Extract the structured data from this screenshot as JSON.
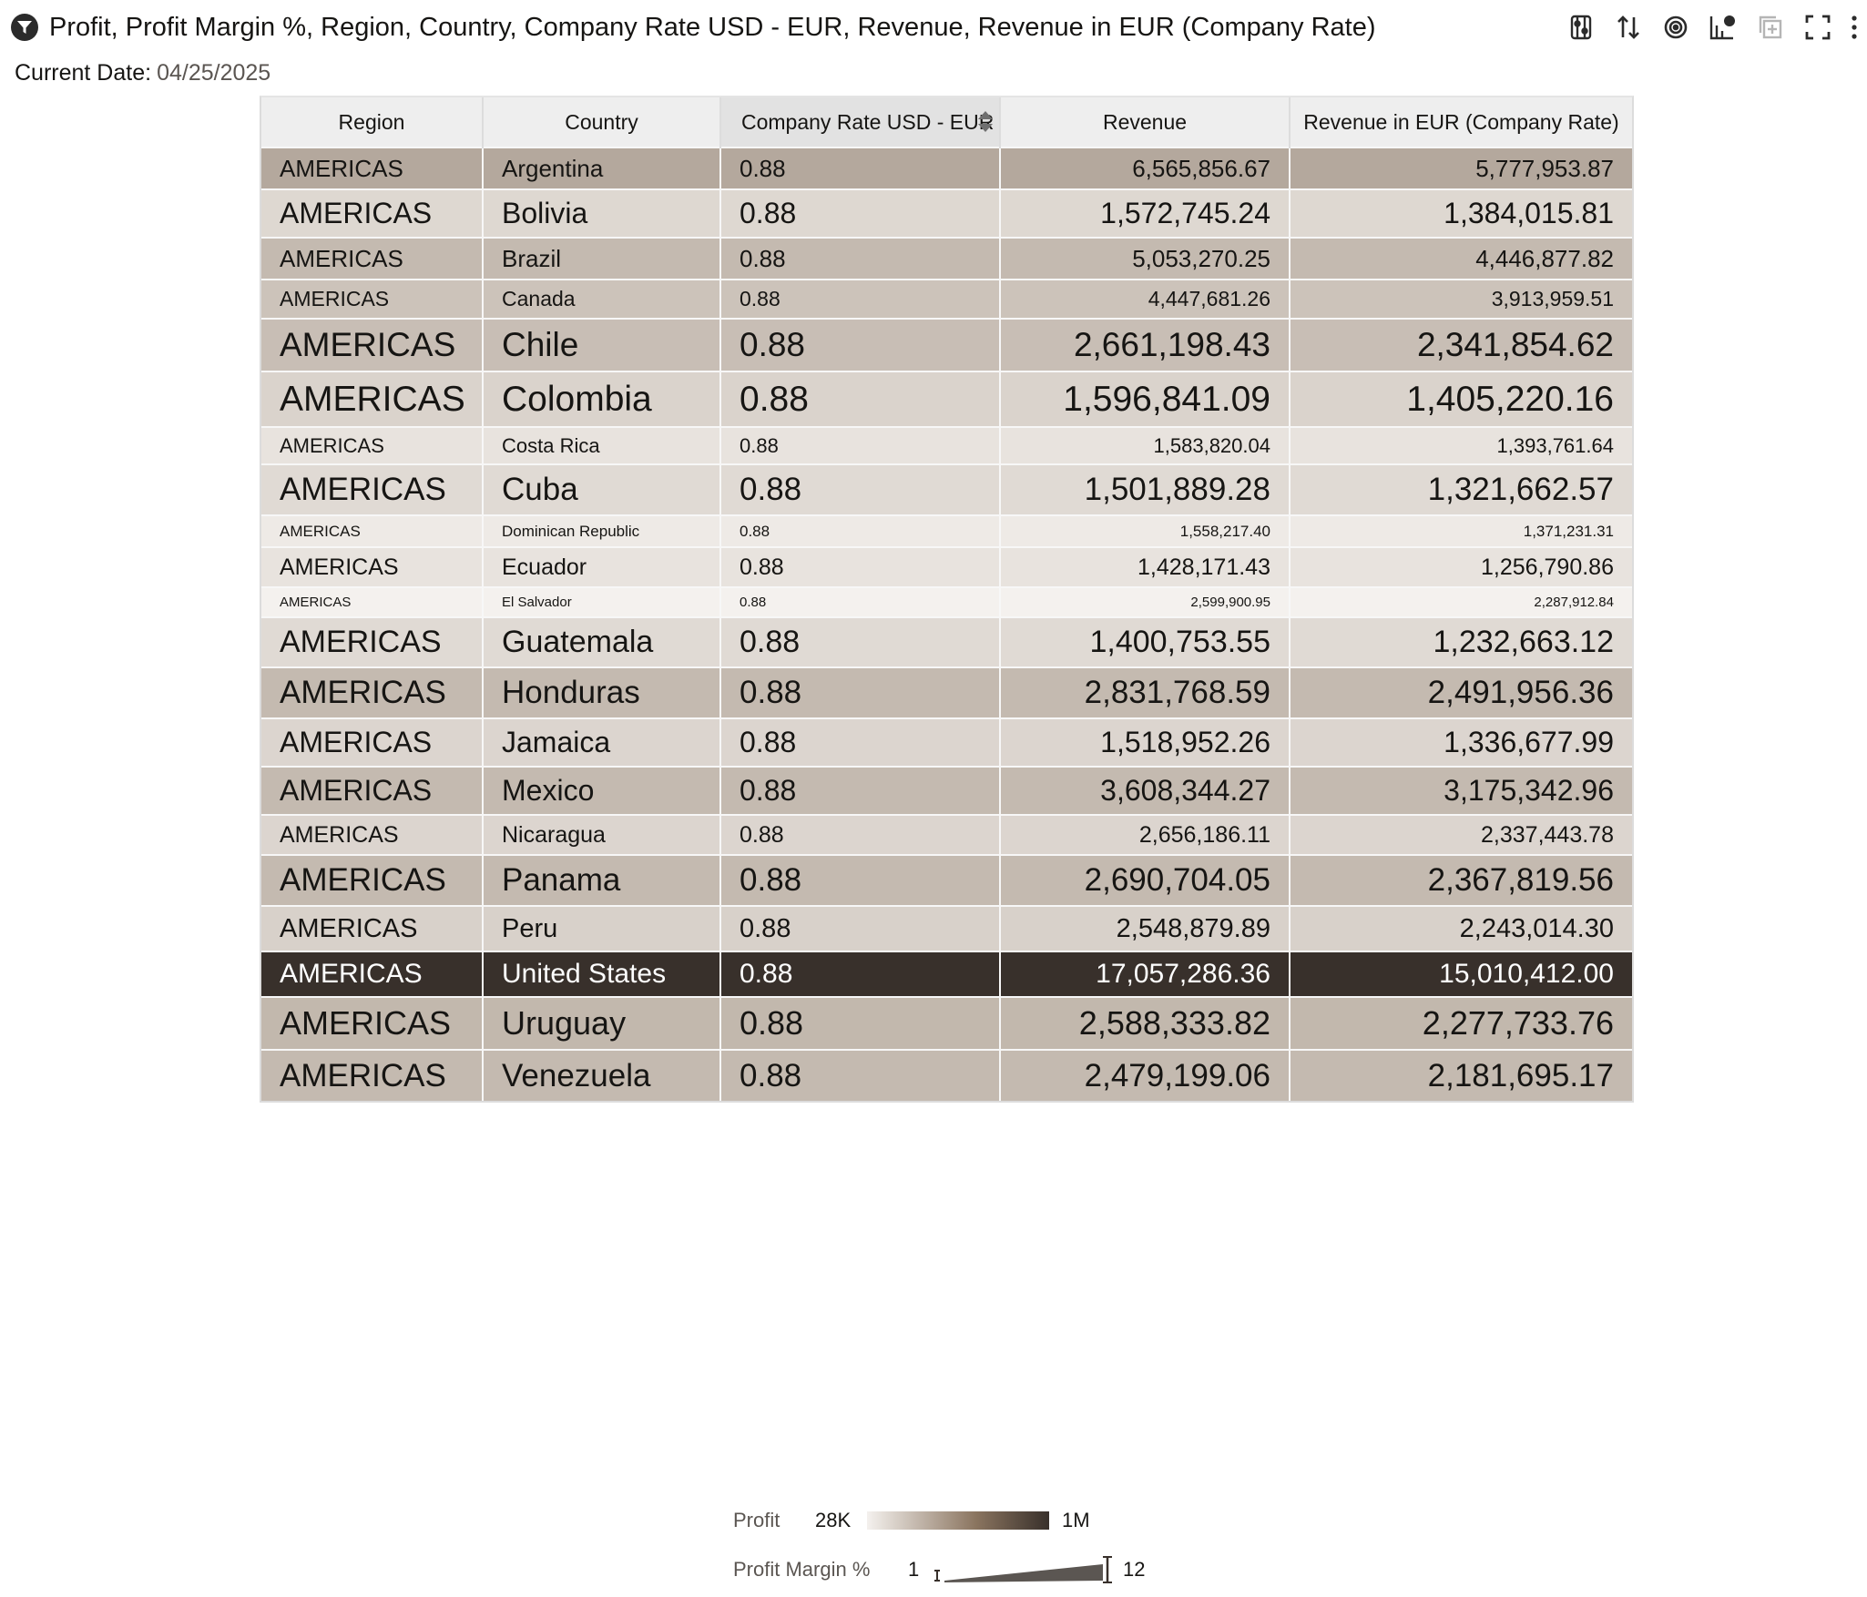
{
  "header": {
    "title": "Profit, Profit Margin %, Region, Country, Company Rate USD - EUR, Revenue, Revenue in EUR (Company Rate)"
  },
  "toolbar": {
    "icons": [
      "filter-settings-icon",
      "sort-icon",
      "target-icon",
      "chart-properties-icon",
      "add-visualization-icon",
      "fullscreen-icon",
      "more-options-icon"
    ]
  },
  "current_date": {
    "label": "Current Date:",
    "value": "04/25/2025"
  },
  "table": {
    "columns": [
      "Region",
      "Country",
      "Company Rate USD - EUR",
      "Revenue",
      "Revenue in EUR (Company Rate)"
    ],
    "sorted_column": "Company Rate USD - EUR",
    "rows": [
      {
        "region": "AMERICAS",
        "country": "Argentina",
        "rate": "0.88",
        "revenue": "6,565,856.67",
        "revenue_eur": "5,777,953.87",
        "profit_level": 0.32,
        "margin_level": 0.45
      },
      {
        "region": "AMERICAS",
        "country": "Bolivia",
        "rate": "0.88",
        "revenue": "1,572,745.24",
        "revenue_eur": "1,384,015.81",
        "profit_level": 0.11,
        "margin_level": 0.7
      },
      {
        "region": "AMERICAS",
        "country": "Brazil",
        "rate": "0.88",
        "revenue": "5,053,270.25",
        "revenue_eur": "4,446,877.82",
        "profit_level": 0.24,
        "margin_level": 0.45
      },
      {
        "region": "AMERICAS",
        "country": "Canada",
        "rate": "0.88",
        "revenue": "4,447,681.26",
        "revenue_eur": "3,913,959.51",
        "profit_level": 0.2,
        "margin_level": 0.35
      },
      {
        "region": "AMERICAS",
        "country": "Chile",
        "rate": "0.88",
        "revenue": "2,661,198.43",
        "revenue_eur": "2,341,854.62",
        "profit_level": 0.22,
        "margin_level": 0.9
      },
      {
        "region": "AMERICAS",
        "country": "Colombia",
        "rate": "0.88",
        "revenue": "1,596,841.09",
        "revenue_eur": "1,405,220.16",
        "profit_level": 0.13,
        "margin_level": 1.0
      },
      {
        "region": "AMERICAS",
        "country": "Costa Rica",
        "rate": "0.88",
        "revenue": "1,583,820.04",
        "revenue_eur": "1,393,761.64",
        "profit_level": 0.06,
        "margin_level": 0.3
      },
      {
        "region": "AMERICAS",
        "country": "Cuba",
        "rate": "0.88",
        "revenue": "1,501,889.28",
        "revenue_eur": "1,321,662.57",
        "profit_level": 0.1,
        "margin_level": 0.82
      },
      {
        "region": "AMERICAS",
        "country": "Dominican Republic",
        "rate": "0.88",
        "revenue": "1,558,217.40",
        "revenue_eur": "1,371,231.31",
        "profit_level": 0.03,
        "margin_level": 0.08
      },
      {
        "region": "AMERICAS",
        "country": "Ecuador",
        "rate": "0.88",
        "revenue": "1,428,171.43",
        "revenue_eur": "1,256,790.86",
        "profit_level": 0.06,
        "margin_level": 0.4
      },
      {
        "region": "AMERICAS",
        "country": "El Salvador",
        "rate": "0.88",
        "revenue": "2,599,900.95",
        "revenue_eur": "2,287,912.84",
        "profit_level": 0.0,
        "margin_level": 0.0
      },
      {
        "region": "AMERICAS",
        "country": "Guatemala",
        "rate": "0.88",
        "revenue": "1,400,753.55",
        "revenue_eur": "1,232,663.12",
        "profit_level": 0.1,
        "margin_level": 0.78
      },
      {
        "region": "AMERICAS",
        "country": "Honduras",
        "rate": "0.88",
        "revenue": "2,831,768.59",
        "revenue_eur": "2,491,956.36",
        "profit_level": 0.24,
        "margin_level": 0.82
      },
      {
        "region": "AMERICAS",
        "country": "Jamaica",
        "rate": "0.88",
        "revenue": "1,518,952.26",
        "revenue_eur": "1,336,677.99",
        "profit_level": 0.12,
        "margin_level": 0.72
      },
      {
        "region": "AMERICAS",
        "country": "Mexico",
        "rate": "0.88",
        "revenue": "3,608,344.27",
        "revenue_eur": "3,175,342.96",
        "profit_level": 0.24,
        "margin_level": 0.7
      },
      {
        "region": "AMERICAS",
        "country": "Nicaragua",
        "rate": "0.88",
        "revenue": "2,656,186.11",
        "revenue_eur": "2,337,443.78",
        "profit_level": 0.12,
        "margin_level": 0.4
      },
      {
        "region": "AMERICAS",
        "country": "Panama",
        "rate": "0.88",
        "revenue": "2,690,704.05",
        "revenue_eur": "2,367,819.56",
        "profit_level": 0.24,
        "margin_level": 0.82
      },
      {
        "region": "AMERICAS",
        "country": "Peru",
        "rate": "0.88",
        "revenue": "2,548,879.89",
        "revenue_eur": "2,243,014.30",
        "profit_level": 0.14,
        "margin_level": 0.6
      },
      {
        "region": "AMERICAS",
        "country": "United States",
        "rate": "0.88",
        "revenue": "17,057,286.36",
        "revenue_eur": "15,010,412.00",
        "profit_level": 1.0,
        "margin_level": 0.62
      },
      {
        "region": "AMERICAS",
        "country": "Uruguay",
        "rate": "0.88",
        "revenue": "2,588,333.82",
        "revenue_eur": "2,277,733.76",
        "profit_level": 0.25,
        "margin_level": 0.88
      },
      {
        "region": "AMERICAS",
        "country": "Venezuela",
        "rate": "0.88",
        "revenue": "2,479,199.06",
        "revenue_eur": "2,181,695.17",
        "profit_level": 0.24,
        "margin_level": 0.82
      }
    ]
  },
  "legend": {
    "profit": {
      "label": "Profit",
      "min": "28K",
      "max": "1M",
      "color_light": "#f4f1ee",
      "color_mid": "#8a745f",
      "color_dark": "#38302b"
    },
    "margin": {
      "label": "Profit Margin %",
      "min": "1",
      "max": "12"
    }
  },
  "colors": {
    "header_bg": "#eeeeee",
    "sorted_header_bg": "#e2e2e2",
    "text_dark": "#161513",
    "text_light": "#ffffff",
    "label_gray": "#5b5652"
  }
}
